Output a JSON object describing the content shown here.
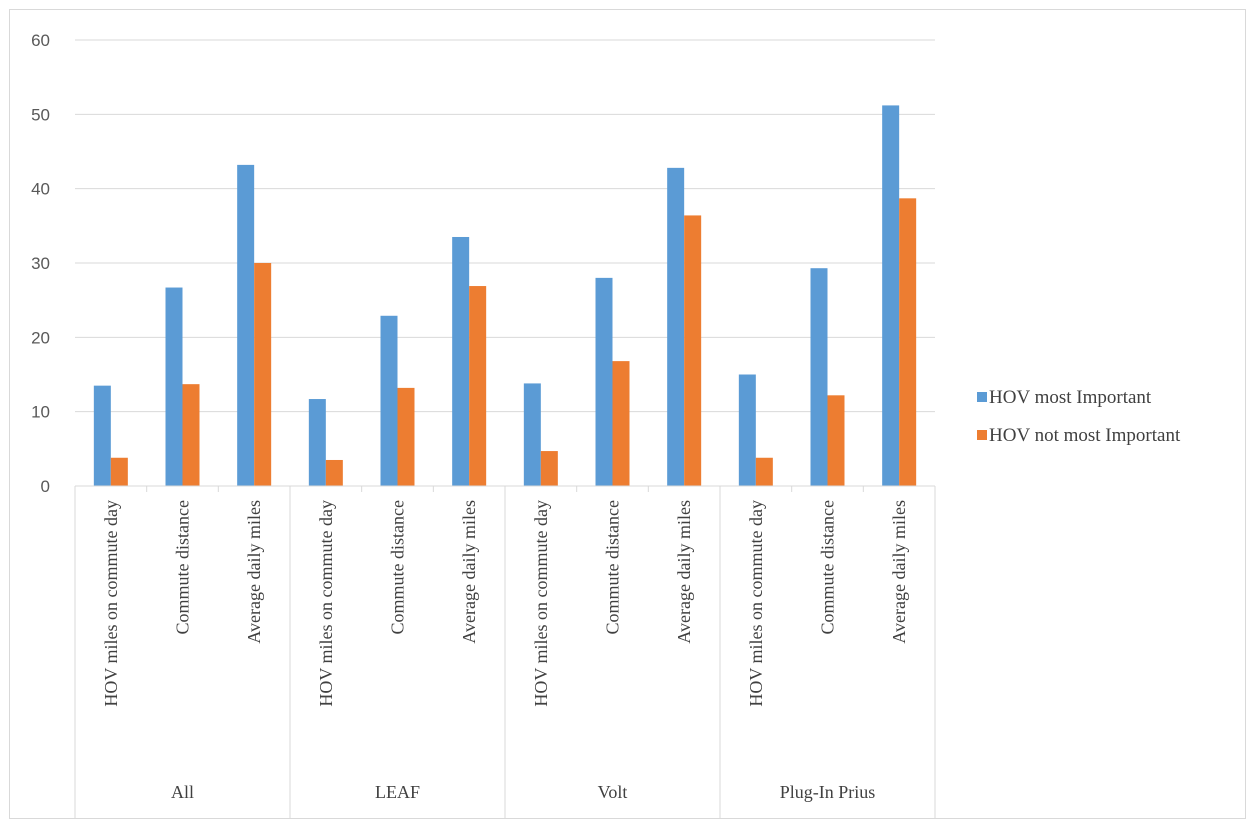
{
  "chart_data": {
    "type": "bar",
    "title": "",
    "xlabel": "",
    "ylabel": "",
    "ylim": [
      0,
      60
    ],
    "yticks": [
      0,
      10,
      20,
      30,
      40,
      50,
      60
    ],
    "grid": true,
    "legend_position": "right",
    "groups": [
      {
        "label": "All",
        "categories": [
          "HOV miles on commute day",
          "Commute distance",
          "Average daily miles"
        ]
      },
      {
        "label": "LEAF",
        "categories": [
          "HOV miles on commute day",
          "Commute distance",
          "Average daily miles"
        ]
      },
      {
        "label": "Volt",
        "categories": [
          "HOV miles on commute day",
          "Commute distance",
          "Average daily miles"
        ]
      },
      {
        "label": "Plug-In Prius",
        "categories": [
          "HOV miles on commute day",
          "Commute distance",
          "Average daily miles"
        ]
      }
    ],
    "series": [
      {
        "name": "HOV most Important",
        "color": "#5b9bd5",
        "values": [
          13.5,
          26.7,
          43.2,
          11.7,
          22.9,
          33.5,
          13.8,
          28.0,
          42.8,
          15.0,
          29.3,
          51.2
        ]
      },
      {
        "name": "HOV not most Important",
        "color": "#ed7d31",
        "values": [
          3.8,
          13.7,
          30.0,
          3.5,
          13.2,
          26.9,
          4.7,
          16.8,
          36.4,
          3.8,
          12.2,
          38.7
        ]
      }
    ]
  }
}
